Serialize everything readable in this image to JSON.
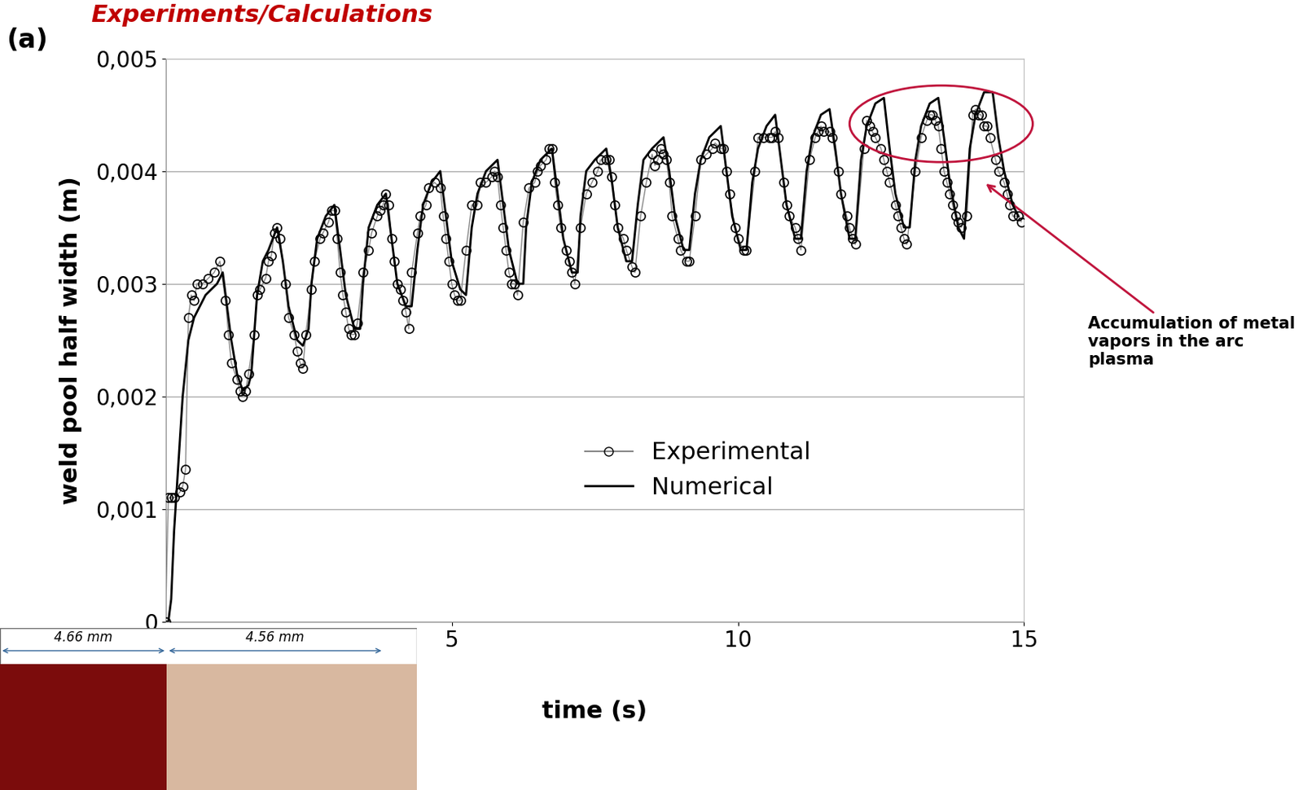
{
  "chart_data": {
    "type": "line",
    "header": "Experiments/Calculations",
    "panel_label": "(a)",
    "x_label": "time (s)",
    "y_label": "weld pool half width (m)",
    "xlim": [
      0,
      15
    ],
    "xticks": [
      5,
      10,
      15
    ],
    "ylim": [
      0,
      0.005
    ],
    "yticks": [
      0,
      {
        "value": 0.001,
        "label": "0,001"
      },
      {
        "value": 0.002,
        "label": "0,002"
      },
      {
        "value": 0.003,
        "label": "0,003"
      },
      {
        "value": 0.004,
        "label": "0,004"
      },
      {
        "value": 0.005,
        "label": "0,005"
      }
    ],
    "grid": true,
    "legend": "lower center",
    "annotation": "Accumulation of metal vapors in the arc plasma",
    "inset_labels": [
      "4.66 mm",
      "4.56 mm"
    ],
    "series": [
      {
        "name": "Experimental",
        "type": "line",
        "marker": "circle",
        "color": "#000000",
        "x": [
          0.0,
          0.05,
          0.1,
          0.15,
          0.25,
          0.3,
          0.35,
          0.4,
          0.45,
          0.5,
          0.55,
          0.65,
          0.75,
          0.85,
          0.95,
          1.05,
          1.1,
          1.15,
          1.25,
          1.3,
          1.35,
          1.4,
          1.45,
          1.55,
          1.6,
          1.65,
          1.75,
          1.8,
          1.85,
          1.9,
          1.95,
          2.0,
          2.1,
          2.15,
          2.25,
          2.3,
          2.35,
          2.4,
          2.45,
          2.55,
          2.6,
          2.7,
          2.75,
          2.85,
          2.9,
          2.95,
          3.0,
          3.05,
          3.1,
          3.15,
          3.2,
          3.25,
          3.3,
          3.35,
          3.45,
          3.55,
          3.6,
          3.7,
          3.75,
          3.8,
          3.85,
          3.9,
          3.95,
          4.0,
          4.05,
          4.1,
          4.15,
          4.2,
          4.25,
          4.3,
          4.4,
          4.45,
          4.55,
          4.6,
          4.7,
          4.8,
          4.85,
          4.9,
          4.95,
          5.0,
          5.05,
          5.1,
          5.15,
          5.25,
          5.35,
          5.45,
          5.5,
          5.6,
          5.7,
          5.75,
          5.8,
          5.85,
          5.9,
          5.95,
          6.0,
          6.05,
          6.1,
          6.15,
          6.25,
          6.35,
          6.45,
          6.5,
          6.55,
          6.65,
          6.7,
          6.75,
          6.8,
          6.85,
          6.9,
          7.0,
          7.05,
          7.1,
          7.15,
          7.25,
          7.35,
          7.45,
          7.55,
          7.6,
          7.7,
          7.75,
          7.8,
          7.85,
          7.9,
          8.0,
          8.05,
          8.15,
          8.2,
          8.3,
          8.4,
          8.5,
          8.55,
          8.6,
          8.65,
          8.7,
          8.75,
          8.8,
          8.85,
          8.95,
          9.0,
          9.1,
          9.15,
          9.25,
          9.35,
          9.45,
          9.55,
          9.6,
          9.7,
          9.75,
          9.8,
          9.85,
          9.95,
          10.0,
          10.1,
          10.15,
          10.3,
          10.35,
          10.45,
          10.55,
          10.6,
          10.65,
          10.7,
          10.8,
          10.85,
          10.9,
          11.0,
          11.05,
          11.1,
          11.25,
          11.35,
          11.4,
          11.45,
          11.5,
          11.6,
          11.65,
          11.75,
          11.8,
          11.9,
          11.95,
          12.0,
          12.05,
          12.2,
          12.25,
          12.3,
          12.35,
          12.4,
          12.5,
          12.55,
          12.6,
          12.65,
          12.75,
          12.8,
          12.85,
          12.9,
          12.95,
          13.1,
          13.2,
          13.3,
          13.35,
          13.4,
          13.45,
          13.5,
          13.55,
          13.6,
          13.65,
          13.7,
          13.75,
          13.8,
          13.85,
          13.9,
          14.0,
          14.1,
          14.15,
          14.2,
          14.25,
          14.3,
          14.35,
          14.4,
          14.5,
          14.55,
          14.65,
          14.7,
          14.75,
          14.8,
          14.9,
          14.95
        ],
        "values": [
          0,
          0.0011,
          0.0011,
          0.0011,
          0.00115,
          0.0012,
          0.00135,
          0.0027,
          0.0029,
          0.00285,
          0.003,
          0.003,
          0.00305,
          0.0031,
          0.0032,
          0.00285,
          0.00255,
          0.0023,
          0.00215,
          0.00205,
          0.002,
          0.00205,
          0.0022,
          0.00255,
          0.0029,
          0.00295,
          0.00305,
          0.0032,
          0.00325,
          0.00345,
          0.0035,
          0.0034,
          0.003,
          0.0027,
          0.00255,
          0.0024,
          0.0023,
          0.00225,
          0.00255,
          0.00295,
          0.0032,
          0.0034,
          0.00345,
          0.00355,
          0.00365,
          0.00365,
          0.0034,
          0.0031,
          0.0029,
          0.00275,
          0.0026,
          0.00255,
          0.00255,
          0.00265,
          0.0031,
          0.0033,
          0.00345,
          0.0036,
          0.00365,
          0.0037,
          0.0038,
          0.0037,
          0.0034,
          0.0032,
          0.003,
          0.00295,
          0.00285,
          0.00275,
          0.0026,
          0.0031,
          0.00345,
          0.0036,
          0.0037,
          0.00385,
          0.0039,
          0.00385,
          0.0036,
          0.0034,
          0.0032,
          0.003,
          0.0029,
          0.00285,
          0.00285,
          0.0033,
          0.0037,
          0.0037,
          0.0039,
          0.0039,
          0.00395,
          0.004,
          0.00395,
          0.0037,
          0.0035,
          0.0033,
          0.0031,
          0.003,
          0.003,
          0.0029,
          0.00355,
          0.00385,
          0.0039,
          0.004,
          0.00405,
          0.0041,
          0.0042,
          0.0042,
          0.0039,
          0.0037,
          0.0035,
          0.0033,
          0.0032,
          0.0031,
          0.003,
          0.0035,
          0.0038,
          0.0039,
          0.004,
          0.0041,
          0.0041,
          0.0041,
          0.00395,
          0.0037,
          0.0035,
          0.0034,
          0.0033,
          0.00315,
          0.0031,
          0.0036,
          0.0039,
          0.00415,
          0.00405,
          0.0041,
          0.0042,
          0.00415,
          0.0041,
          0.0039,
          0.0036,
          0.0034,
          0.0033,
          0.0032,
          0.0032,
          0.0036,
          0.0041,
          0.00415,
          0.0042,
          0.00425,
          0.0042,
          0.0042,
          0.004,
          0.0038,
          0.0035,
          0.0034,
          0.0033,
          0.0033,
          0.004,
          0.0043,
          0.0043,
          0.0043,
          0.0043,
          0.00435,
          0.0043,
          0.0039,
          0.0037,
          0.0036,
          0.0035,
          0.0034,
          0.0033,
          0.0041,
          0.0043,
          0.00435,
          0.0044,
          0.00435,
          0.00435,
          0.0043,
          0.004,
          0.0038,
          0.0036,
          0.0035,
          0.0034,
          0.00335,
          0.0042,
          0.00445,
          0.0044,
          0.00435,
          0.0043,
          0.0042,
          0.0041,
          0.004,
          0.0039,
          0.0037,
          0.0036,
          0.0035,
          0.0034,
          0.00335,
          0.004,
          0.0043,
          0.00445,
          0.0045,
          0.0045,
          0.00445,
          0.0044,
          0.0042,
          0.004,
          0.0039,
          0.0038,
          0.0037,
          0.0036,
          0.00355,
          0.0035,
          0.0036,
          0.0045,
          0.00455,
          0.0045,
          0.0045,
          0.0044,
          0.0044,
          0.0043,
          0.0041,
          0.004,
          0.0039,
          0.0038,
          0.0037,
          0.0036,
          0.0036,
          0.00355
        ]
      },
      {
        "name": "Numerical",
        "type": "line",
        "color": "#000000",
        "line_style": "solid",
        "x": [
          0.0,
          0.05,
          0.1,
          0.15,
          0.2,
          0.3,
          0.4,
          0.5,
          0.7,
          0.9,
          1.0,
          1.05,
          1.15,
          1.25,
          1.35,
          1.45,
          1.5,
          1.6,
          1.7,
          1.8,
          1.95,
          2.05,
          2.15,
          2.3,
          2.4,
          2.5,
          2.55,
          2.65,
          2.8,
          2.95,
          3.05,
          3.15,
          3.3,
          3.4,
          3.45,
          3.55,
          3.7,
          3.85,
          3.95,
          4.05,
          4.2,
          4.3,
          4.4,
          4.5,
          4.65,
          4.8,
          4.9,
          5.0,
          5.15,
          5.25,
          5.35,
          5.45,
          5.6,
          5.8,
          5.9,
          6.0,
          6.15,
          6.25,
          6.3,
          6.4,
          6.55,
          6.75,
          6.85,
          6.95,
          7.1,
          7.2,
          7.25,
          7.35,
          7.5,
          7.7,
          7.8,
          7.9,
          8.05,
          8.15,
          8.25,
          8.35,
          8.5,
          8.7,
          8.8,
          8.9,
          9.05,
          9.15,
          9.25,
          9.35,
          9.5,
          9.7,
          9.8,
          9.9,
          10.05,
          10.15,
          10.25,
          10.35,
          10.5,
          10.65,
          10.75,
          10.85,
          11.0,
          11.1,
          11.2,
          11.3,
          11.45,
          11.6,
          11.7,
          11.8,
          11.95,
          12.05,
          12.15,
          12.25,
          12.4,
          12.55,
          12.65,
          12.75,
          12.9,
          13.0,
          13.1,
          13.2,
          13.35,
          13.5,
          13.6,
          13.7,
          13.85,
          13.95,
          14.05,
          14.15,
          14.3,
          14.45,
          14.55,
          14.65,
          14.8,
          14.9
        ],
        "values": [
          0,
          0,
          0.0002,
          0.0008,
          0.0012,
          0.002,
          0.0025,
          0.0027,
          0.0029,
          0.003,
          0.0031,
          0.0029,
          0.0025,
          0.0022,
          0.00205,
          0.0021,
          0.0022,
          0.0029,
          0.0032,
          0.0033,
          0.0035,
          0.0032,
          0.0028,
          0.0025,
          0.00245,
          0.0026,
          0.003,
          0.0034,
          0.0036,
          0.0037,
          0.0033,
          0.0029,
          0.0026,
          0.0026,
          0.003,
          0.0035,
          0.0037,
          0.0038,
          0.0034,
          0.003,
          0.0028,
          0.0028,
          0.0033,
          0.0037,
          0.0039,
          0.004,
          0.0036,
          0.0032,
          0.00295,
          0.0029,
          0.0035,
          0.0038,
          0.004,
          0.0041,
          0.0037,
          0.0033,
          0.003,
          0.003,
          0.0035,
          0.0039,
          0.0041,
          0.0042,
          0.0038,
          0.0034,
          0.0031,
          0.0031,
          0.0036,
          0.004,
          0.0041,
          0.0042,
          0.0039,
          0.0035,
          0.0032,
          0.0032,
          0.0037,
          0.0041,
          0.0042,
          0.0043,
          0.004,
          0.0036,
          0.0033,
          0.0033,
          0.0038,
          0.0041,
          0.0043,
          0.0044,
          0.004,
          0.0036,
          0.0033,
          0.0033,
          0.0039,
          0.0042,
          0.0044,
          0.0045,
          0.0041,
          0.0037,
          0.0034,
          0.0034,
          0.004,
          0.0043,
          0.0045,
          0.00455,
          0.0042,
          0.0038,
          0.0034,
          0.0034,
          0.0041,
          0.0044,
          0.0046,
          0.00465,
          0.0042,
          0.0038,
          0.0035,
          0.0035,
          0.0041,
          0.0044,
          0.0046,
          0.00465,
          0.0043,
          0.0039,
          0.0035,
          0.0034,
          0.0042,
          0.0045,
          0.0047,
          0.0047,
          0.0043,
          0.004,
          0.0037,
          0.0036
        ]
      }
    ]
  }
}
